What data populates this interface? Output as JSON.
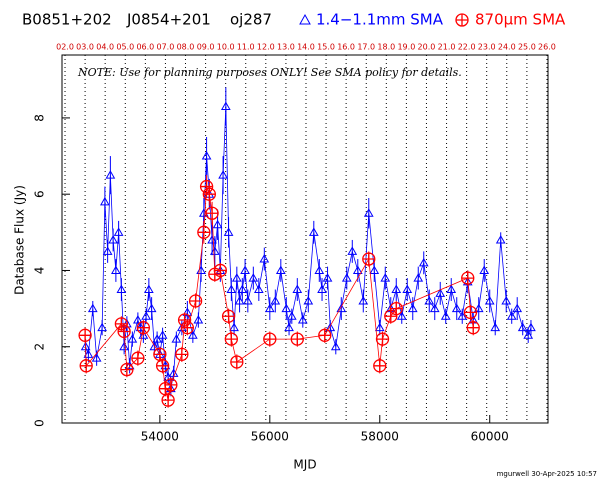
{
  "chart_data": {
    "type": "scatter",
    "header": [
      "B0851+202",
      "J0854+201",
      "oj287"
    ],
    "note": "NOTE: Use for planning purposes ONLY! See SMA policy for details.",
    "xlabel": "MJD",
    "ylabel": "Database Flux (Jy)",
    "footer": "mgurwell 30-Apr-2025 10:57",
    "xlim": [
      52220,
      61060
    ],
    "ylim": [
      0,
      9.65
    ],
    "xticks": [
      54000,
      56000,
      58000,
      60000
    ],
    "yticks": [
      0,
      2,
      4,
      6,
      8
    ],
    "top_ticks": [
      {
        "value": 52275,
        "label": "02.0"
      },
      {
        "value": 52640,
        "label": "03.0"
      },
      {
        "value": 53005,
        "label": "04.0"
      },
      {
        "value": 53371,
        "label": "05.0"
      },
      {
        "value": 53736,
        "label": "06.0"
      },
      {
        "value": 54101,
        "label": "07.0"
      },
      {
        "value": 54466,
        "label": "08.0"
      },
      {
        "value": 54832,
        "label": "09.0"
      },
      {
        "value": 55197,
        "label": "10.0"
      },
      {
        "value": 55562,
        "label": "11.0"
      },
      {
        "value": 55927,
        "label": "12.0"
      },
      {
        "value": 56293,
        "label": "13.0"
      },
      {
        "value": 56658,
        "label": "14.0"
      },
      {
        "value": 57023,
        "label": "15.0"
      },
      {
        "value": 57388,
        "label": "16.0"
      },
      {
        "value": 57754,
        "label": "17.0"
      },
      {
        "value": 58119,
        "label": "18.0"
      },
      {
        "value": 58484,
        "label": "19.0"
      },
      {
        "value": 58849,
        "label": "20.0"
      },
      {
        "value": 59215,
        "label": "21.0"
      },
      {
        "value": 59580,
        "label": "22.0"
      },
      {
        "value": 59945,
        "label": "23.0"
      },
      {
        "value": 60310,
        "label": "24.0"
      },
      {
        "value": 60676,
        "label": "25.0"
      },
      {
        "value": 61041,
        "label": "26.0"
      }
    ],
    "series": [
      {
        "name": "1.4−1.1mm SMA",
        "color": "#0000ff",
        "marker": "triangle",
        "x": [
          52650,
          52700,
          52780,
          52850,
          52950,
          53000,
          53050,
          53100,
          53150,
          53200,
          53250,
          53300,
          53350,
          53400,
          53450,
          53500,
          53600,
          53650,
          53700,
          53750,
          53800,
          53850,
          53900,
          53950,
          54000,
          54050,
          54100,
          54150,
          54200,
          54250,
          54300,
          54400,
          54500,
          54600,
          54700,
          54750,
          54800,
          54850,
          54900,
          54950,
          55000,
          55050,
          55100,
          55150,
          55200,
          55250,
          55300,
          55350,
          55400,
          55450,
          55500,
          55550,
          55600,
          55700,
          55800,
          55900,
          56000,
          56100,
          56200,
          56300,
          56350,
          56400,
          56500,
          56600,
          56700,
          56800,
          56900,
          56950,
          57050,
          57100,
          57200,
          57300,
          57400,
          57500,
          57600,
          57700,
          57800,
          57900,
          58000,
          58100,
          58200,
          58300,
          58400,
          58500,
          58600,
          58700,
          58800,
          58900,
          59000,
          59100,
          59200,
          59300,
          59400,
          59500,
          59600,
          59700,
          59800,
          59900,
          60000,
          60100,
          60200,
          60300,
          60400,
          60500,
          60600,
          60700,
          60750
        ],
        "values": [
          2.0,
          1.8,
          3.0,
          1.7,
          2.5,
          5.8,
          4.5,
          6.5,
          4.8,
          4.0,
          5.0,
          3.5,
          2.0,
          2.6,
          1.5,
          2.2,
          2.7,
          2.5,
          2.3,
          2.8,
          3.5,
          3.0,
          2.0,
          2.2,
          1.8,
          2.3,
          1.5,
          1.2,
          0.9,
          1.3,
          2.2,
          2.5,
          2.9,
          2.3,
          2.7,
          4.0,
          5.5,
          7.0,
          6.0,
          4.8,
          4.5,
          5.2,
          4.0,
          6.5,
          8.3,
          5.0,
          3.5,
          2.5,
          3.8,
          3.2,
          3.5,
          4.0,
          3.2,
          3.8,
          3.5,
          4.3,
          3.0,
          3.2,
          4.0,
          3.0,
          2.5,
          2.8,
          3.5,
          2.7,
          3.2,
          5.0,
          4.0,
          3.5,
          3.8,
          2.5,
          2.0,
          3.0,
          3.8,
          4.5,
          4.0,
          3.2,
          5.5,
          4.0,
          2.5,
          3.8,
          3.0,
          3.5,
          2.8,
          3.5,
          3.0,
          3.8,
          4.2,
          3.2,
          3.0,
          3.4,
          2.8,
          3.5,
          3.0,
          2.8,
          3.7,
          2.7,
          3.0,
          4.0,
          3.2,
          2.5,
          4.8,
          3.2,
          2.8,
          3.0,
          2.5,
          2.3,
          2.5
        ],
        "errors": [
          0.2,
          0.2,
          0.2,
          0.2,
          0.2,
          0.4,
          0.3,
          0.5,
          0.3,
          0.3,
          0.3,
          0.3,
          0.2,
          0.2,
          0.2,
          0.2,
          0.2,
          0.2,
          0.2,
          0.2,
          0.3,
          0.3,
          0.2,
          0.2,
          0.2,
          0.2,
          0.2,
          0.2,
          0.2,
          0.2,
          0.2,
          0.2,
          0.3,
          0.2,
          0.2,
          0.3,
          0.4,
          0.5,
          0.4,
          0.4,
          0.4,
          0.4,
          0.3,
          0.5,
          0.5,
          0.4,
          0.3,
          0.2,
          0.3,
          0.3,
          0.3,
          0.3,
          0.3,
          0.3,
          0.3,
          0.3,
          0.3,
          0.3,
          0.3,
          0.3,
          0.2,
          0.2,
          0.3,
          0.2,
          0.3,
          0.3,
          0.3,
          0.3,
          0.3,
          0.2,
          0.2,
          0.3,
          0.3,
          0.3,
          0.3,
          0.3,
          0.4,
          0.3,
          0.2,
          0.3,
          0.3,
          0.3,
          0.2,
          0.3,
          0.3,
          0.3,
          0.3,
          0.3,
          0.3,
          0.3,
          0.2,
          0.3,
          0.3,
          0.2,
          0.3,
          0.2,
          0.3,
          0.3,
          0.3,
          0.2,
          0.2,
          0.3,
          0.2,
          0.3,
          0.2,
          0.2,
          0.2
        ]
      },
      {
        "name": "870μm SMA",
        "color": "#ff0000",
        "marker": "circle-plus",
        "x": [
          52640,
          52660,
          53300,
          53350,
          53400,
          53600,
          53700,
          54000,
          54050,
          54100,
          54150,
          54200,
          54400,
          54450,
          54500,
          54650,
          54800,
          54850,
          54900,
          54950,
          55000,
          55100,
          55250,
          55300,
          55400,
          56000,
          56500,
          57000,
          57800,
          58000,
          58050,
          58200,
          58300,
          59600,
          59650,
          59700
        ],
        "values": [
          2.3,
          1.5,
          2.6,
          2.4,
          1.4,
          1.7,
          2.5,
          1.8,
          1.5,
          0.9,
          0.6,
          1.0,
          1.8,
          2.7,
          2.5,
          3.2,
          5.0,
          6.2,
          6.0,
          5.5,
          3.9,
          4.0,
          2.8,
          2.2,
          1.6,
          2.2,
          2.2,
          2.3,
          4.3,
          1.5,
          2.2,
          2.8,
          3.0,
          3.8,
          2.9,
          2.5
        ],
        "errors": [
          0.2,
          0.2,
          0.2,
          0.2,
          0.2,
          0.2,
          0.2,
          0.2,
          0.2,
          0.2,
          0.2,
          0.2,
          0.2,
          0.2,
          0.2,
          0.2,
          0.3,
          0.3,
          0.3,
          0.3,
          0.2,
          0.2,
          0.2,
          0.2,
          0.2,
          0.2,
          0.2,
          0.2,
          0.2,
          0.2,
          0.2,
          0.2,
          0.2,
          0.2,
          0.2,
          0.2
        ]
      }
    ]
  }
}
